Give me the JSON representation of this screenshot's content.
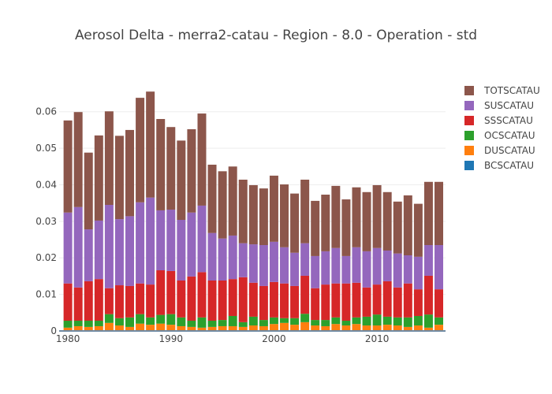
{
  "chart_data": {
    "type": "bar",
    "barmode": "stack",
    "title": "Aerosol Delta - merra2-catau - Region - 8.0 - Operation - std",
    "xlabel": "",
    "ylabel": "",
    "x": [
      1980,
      1981,
      1982,
      1983,
      1984,
      1985,
      1986,
      1987,
      1988,
      1989,
      1990,
      1991,
      1992,
      1993,
      1994,
      1995,
      1996,
      1997,
      1998,
      1999,
      2000,
      2001,
      2002,
      2003,
      2004,
      2005,
      2006,
      2007,
      2008,
      2009,
      2010,
      2011,
      2012,
      2013,
      2014,
      2015,
      2016
    ],
    "xticks": [
      1980,
      1990,
      2000,
      2010
    ],
    "xtick_labels": [
      "1980",
      "1990",
      "2000",
      "2010"
    ],
    "yticks": [
      0,
      0.01,
      0.02,
      0.03,
      0.04,
      0.05,
      0.06
    ],
    "ytick_labels": [
      "0",
      "0.01",
      "0.02",
      "0.03",
      "0.04",
      "0.05",
      "0.06"
    ],
    "xlim": [
      1979.15,
      2016.65
    ],
    "ylim": [
      0,
      0.069
    ],
    "grid": true,
    "legend_position": "top-right",
    "series": [
      {
        "name": "BCSCATAU",
        "color": "#1f77b4",
        "values": [
          0.0002,
          0.0002,
          0.0002,
          0.0002,
          0.0002,
          0.0002,
          0.0002,
          0.0002,
          0.0002,
          0.0002,
          0.0002,
          0.0002,
          0.0002,
          0.0002,
          0.0002,
          0.0002,
          0.0002,
          0.0002,
          0.0002,
          0.0002,
          0.0002,
          0.0002,
          0.0002,
          0.0002,
          0.0002,
          0.0002,
          0.0002,
          0.0002,
          0.0002,
          0.0002,
          0.0002,
          0.0002,
          0.0002,
          0.0002,
          0.0002,
          0.0002,
          0.0002
        ]
      },
      {
        "name": "DUSCATAU",
        "color": "#ff7f0e",
        "values": [
          0.0007,
          0.0011,
          0.0009,
          0.0011,
          0.002,
          0.0013,
          0.0009,
          0.0018,
          0.0015,
          0.0018,
          0.0015,
          0.0011,
          0.0009,
          0.0007,
          0.0009,
          0.0011,
          0.0011,
          0.0009,
          0.0013,
          0.0011,
          0.0017,
          0.002,
          0.0015,
          0.0022,
          0.0013,
          0.0011,
          0.0017,
          0.0013,
          0.0017,
          0.0013,
          0.0013,
          0.0015,
          0.0013,
          0.0009,
          0.0013,
          0.0007,
          0.0015
        ]
      },
      {
        "name": "OCSCATAU",
        "color": "#2ca02c",
        "values": [
          0.0019,
          0.0015,
          0.0017,
          0.0015,
          0.0024,
          0.002,
          0.0026,
          0.0026,
          0.002,
          0.0024,
          0.0029,
          0.0024,
          0.0017,
          0.0028,
          0.0017,
          0.0017,
          0.0028,
          0.0013,
          0.0024,
          0.0017,
          0.0018,
          0.0013,
          0.0018,
          0.0023,
          0.0015,
          0.0017,
          0.0018,
          0.0013,
          0.0018,
          0.0024,
          0.003,
          0.0022,
          0.0022,
          0.0026,
          0.0026,
          0.0036,
          0.002
        ]
      },
      {
        "name": "SSSCATAU",
        "color": "#d62728",
        "values": [
          0.0102,
          0.0091,
          0.0108,
          0.0114,
          0.0071,
          0.009,
          0.0086,
          0.0084,
          0.009,
          0.0122,
          0.0118,
          0.0101,
          0.0121,
          0.0124,
          0.011,
          0.0108,
          0.0101,
          0.0123,
          0.0093,
          0.0093,
          0.0097,
          0.0095,
          0.0088,
          0.0104,
          0.0087,
          0.0097,
          0.0093,
          0.0102,
          0.0095,
          0.008,
          0.0082,
          0.0097,
          0.0082,
          0.0093,
          0.0073,
          0.0106,
          0.0077
        ]
      },
      {
        "name": "SUSCATAU",
        "color": "#9467bd",
        "values": [
          0.0194,
          0.022,
          0.0142,
          0.016,
          0.0228,
          0.0181,
          0.0191,
          0.0222,
          0.0238,
          0.0164,
          0.0168,
          0.0166,
          0.0175,
          0.0182,
          0.013,
          0.0115,
          0.0119,
          0.0093,
          0.0105,
          0.0112,
          0.011,
          0.0099,
          0.0091,
          0.0089,
          0.0088,
          0.0091,
          0.0097,
          0.0075,
          0.0097,
          0.0099,
          0.01,
          0.0084,
          0.0093,
          0.0077,
          0.0089,
          0.0084,
          0.0121
        ]
      },
      {
        "name": "TOTSCATAU",
        "color": "#8c564b",
        "values": [
          0.0252,
          0.026,
          0.021,
          0.0233,
          0.0256,
          0.0228,
          0.0236,
          0.0286,
          0.029,
          0.025,
          0.0226,
          0.0217,
          0.0228,
          0.0252,
          0.0187,
          0.0184,
          0.0189,
          0.0174,
          0.0162,
          0.0155,
          0.0181,
          0.0172,
          0.0162,
          0.0174,
          0.0151,
          0.0155,
          0.017,
          0.0155,
          0.0164,
          0.0162,
          0.0172,
          0.016,
          0.0142,
          0.0164,
          0.0145,
          0.0173,
          0.0173
        ]
      }
    ],
    "legend_order": [
      "TOTSCATAU",
      "SUSCATAU",
      "SSSCATAU",
      "OCSCATAU",
      "DUSCATAU",
      "BCSCATAU"
    ]
  }
}
